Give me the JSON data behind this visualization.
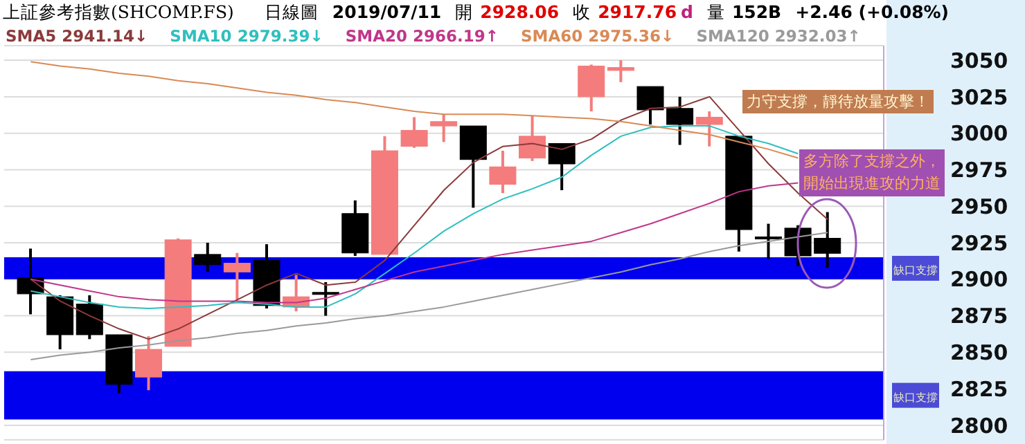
{
  "chart_data": {
    "type": "candlestick",
    "title": "上証參考指數(SHCOMP.FS)",
    "categories": [
      null,
      null,
      null,
      null,
      null,
      null,
      null,
      null,
      null,
      null,
      null,
      null,
      null,
      null,
      null,
      null,
      null,
      null,
      null,
      null,
      null,
      null,
      null,
      null,
      null,
      null,
      null,
      null
    ],
    "ohlc": [
      [
        2901,
        2921,
        2876,
        2890
      ],
      [
        2888,
        2889,
        2852,
        2862
      ],
      [
        2883,
        2889,
        2859,
        2862
      ],
      [
        2862,
        2862,
        2822,
        2828
      ],
      [
        2833,
        2861,
        2824,
        2852
      ],
      [
        2854,
        2928,
        2854,
        2927
      ],
      [
        2917,
        2925,
        2905,
        2910
      ],
      [
        2905,
        2918,
        2886,
        2911
      ],
      [
        2913,
        2924,
        2880,
        2882
      ],
      [
        2881,
        2903,
        2878,
        2888
      ],
      [
        2891,
        2898,
        2875,
        2890
      ],
      [
        2945,
        2954,
        2916,
        2918
      ],
      [
        2917,
        2998,
        2917,
        2988
      ],
      [
        2991,
        3011,
        2990,
        3002
      ],
      [
        3005,
        3013,
        2994,
        3008
      ],
      [
        3005,
        3005,
        2949,
        2982
      ],
      [
        2965,
        2988,
        2959,
        2977
      ],
      [
        2983,
        3012,
        2981,
        2998
      ],
      [
        2993,
        2993,
        2961,
        2979
      ],
      [
        3025,
        3047,
        3015,
        3046
      ],
      [
        3043,
        3050,
        3035,
        3045
      ],
      [
        3032,
        3032,
        3006,
        3016
      ],
      [
        3017,
        3025,
        2992,
        3006
      ],
      [
        3006,
        3015,
        2991,
        3011
      ],
      [
        2998,
        2998,
        2919,
        2934
      ],
      [
        2929,
        2938,
        2914,
        2928
      ],
      [
        2935,
        2937,
        2909,
        2916
      ],
      [
        2928.06,
        2946,
        2908,
        2917.76
      ]
    ],
    "colors": [
      "#000000",
      "#000000",
      "#000000",
      "#000000",
      "#f47c7c",
      "#f47c7c",
      "#000000",
      "#f47c7c",
      "#000000",
      "#f47c7c",
      "#000000",
      "#000000",
      "#f47c7c",
      "#f47c7c",
      "#f47c7c",
      "#000000",
      "#f47c7c",
      "#f47c7c",
      "#000000",
      "#f47c7c",
      "#f47c7c",
      "#000000",
      "#000000",
      "#f47c7c",
      "#000000",
      "#000000",
      "#000000",
      "#000000"
    ],
    "series": [
      {
        "name": "SMA5",
        "type": "line",
        "color": "#8b3a3a",
        "values": [
          2900,
          2885,
          2875,
          2866,
          2859,
          2866,
          2876,
          2886,
          2896,
          2904,
          2896,
          2898,
          2913,
          2937,
          2961,
          2980,
          2991,
          2993,
          2989,
          2996,
          3009,
          3017,
          3018,
          3025,
          3002,
          2979,
          2959,
          2941
        ]
      },
      {
        "name": "SMA10",
        "type": "line",
        "color": "#30bfbf",
        "values": [
          2892,
          2888,
          2884,
          2881,
          2880,
          2881,
          2882,
          2884,
          2883,
          2881,
          2881,
          2890,
          2904,
          2918,
          2933,
          2945,
          2955,
          2962,
          2970,
          2985,
          2998,
          3004,
          3005,
          3005,
          2998,
          2993,
          2986,
          null
        ]
      },
      {
        "name": "SMA20",
        "type": "line",
        "color": "#c0368a",
        "values": [
          2900,
          2896,
          2892,
          2888,
          2886,
          2885,
          2885,
          2885,
          2884,
          2884,
          2887,
          2893,
          2899,
          2905,
          2909,
          2913,
          2917,
          2920,
          2923,
          2926,
          2932,
          2938,
          2945,
          2952,
          2960,
          2964,
          2966,
          null
        ]
      },
      {
        "name": "SMA60",
        "type": "line",
        "color": "#d98a55",
        "values": [
          3049,
          3046,
          3044,
          3041,
          3039,
          3036,
          3034,
          3031,
          3028,
          3026,
          3023,
          3021,
          3018,
          3015,
          3013,
          3013,
          3013,
          3012,
          3011,
          3010,
          3008,
          3005,
          3002,
          2999,
          2994,
          2989,
          2983,
          null
        ]
      },
      {
        "name": "SMA120",
        "type": "line",
        "color": "#9a9a9a",
        "values": [
          2845,
          2848,
          2850,
          2853,
          2855,
          2858,
          2860,
          2863,
          2865,
          2868,
          2870,
          2873,
          2875,
          2878,
          2881,
          2885,
          2889,
          2893,
          2897,
          2901,
          2905,
          2910,
          2914,
          2919,
          2923,
          2926,
          2929,
          2932
        ]
      }
    ],
    "ylim": [
      2790,
      3060
    ],
    "yticks": [
      2800,
      2825,
      2850,
      2875,
      2900,
      2925,
      2950,
      2975,
      3000,
      3025,
      3050
    ],
    "grid": "y",
    "legend": "top",
    "bands": [
      {
        "axis": "y",
        "from": 2900,
        "to": 2915,
        "label": "缺口支撐",
        "color": "#0000ee"
      },
      {
        "axis": "y",
        "from": 2804,
        "to": 2837,
        "label": "缺口支撐",
        "color": "#0000ee"
      }
    ],
    "annotations": [
      "日線圖",
      "2019/07/11",
      "開",
      "2928.06",
      "收",
      "2917.76",
      "d",
      "量",
      "152B",
      "+2.46 (+0.08%)",
      "力守支撐，靜待放量攻擊！",
      "多方除了支撐之外，",
      "開始出現進攻的力道",
      "2941.14↓",
      "2979.39↓",
      "2966.19↑",
      "2975.36↓",
      "2932.03↑"
    ]
  }
}
